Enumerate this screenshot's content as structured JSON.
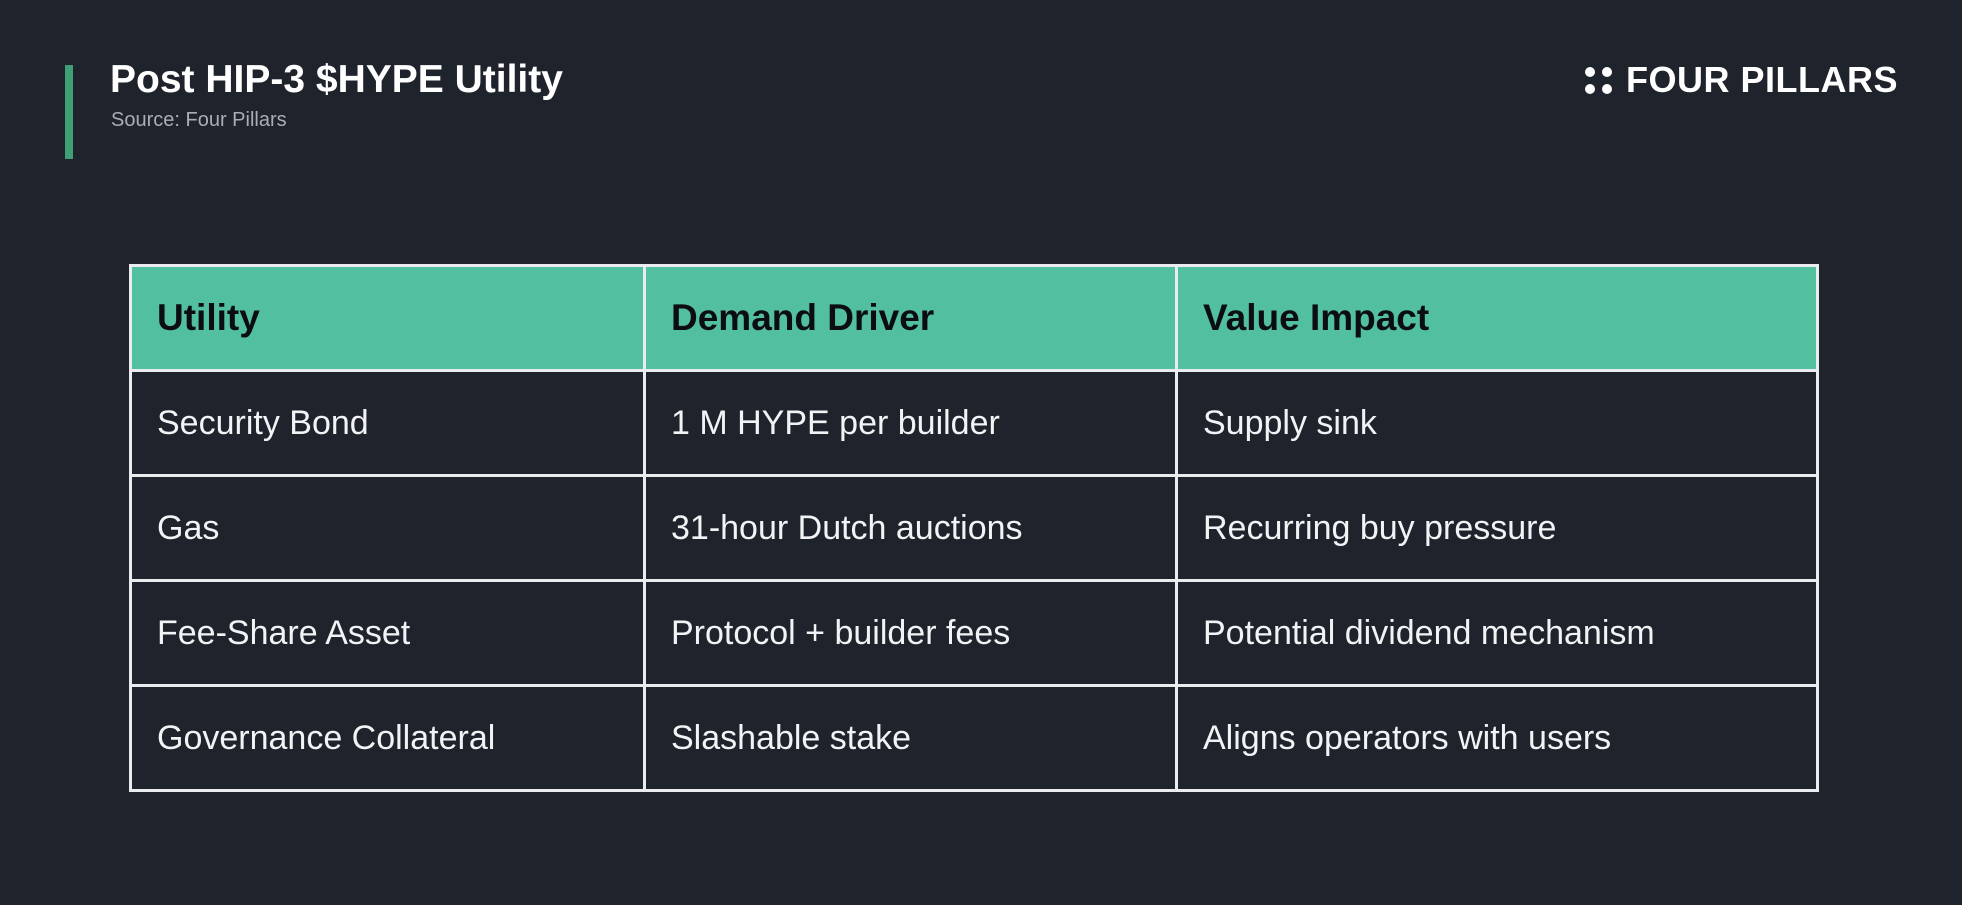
{
  "header": {
    "title": "Post HIP-3 $HYPE Utility",
    "source": "Source: Four Pillars",
    "accent_color": "#3e9e74"
  },
  "brand": {
    "icon": "four-dots-icon",
    "name": "FOUR PILLARS"
  },
  "table": {
    "header_color": "#52bf9f",
    "columns": [
      "Utility",
      "Demand Driver",
      "Value Impact"
    ],
    "rows": [
      [
        "Security Bond",
        "1 M HYPE per builder",
        "Supply sink"
      ],
      [
        "Gas",
        "31-hour Dutch auctions",
        "Recurring buy pressure"
      ],
      [
        "Fee-Share Asset",
        "Protocol + builder fees",
        "Potential dividend mechanism"
      ],
      [
        "Governance Collateral",
        "Slashable stake",
        "Aligns operators with users"
      ]
    ]
  }
}
